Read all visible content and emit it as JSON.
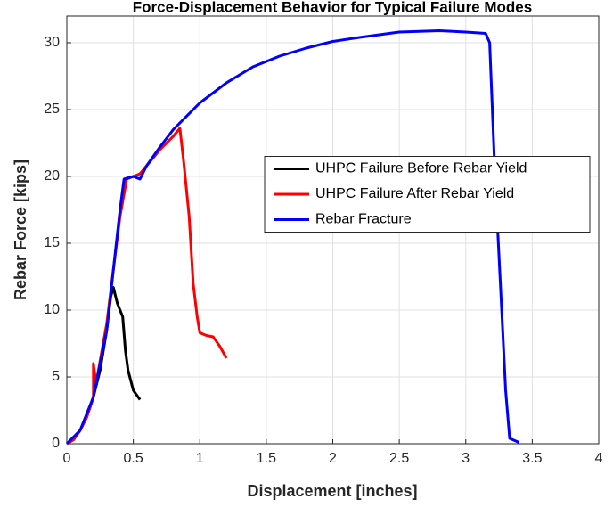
{
  "chart_data": {
    "type": "line",
    "title": "Force-Displacement Behavior for Typical Failure Modes",
    "xlabel": "Displacement [inches]",
    "ylabel": "Rebar Force [kips]",
    "xlim": [
      0,
      4
    ],
    "xticks": [
      0,
      0.5,
      1,
      1.5,
      2,
      2.5,
      3,
      3.5,
      4
    ],
    "ylim": [
      0,
      32
    ],
    "yticks": [
      0,
      5,
      10,
      15,
      20,
      25,
      30
    ],
    "grid": true,
    "legend": "east",
    "series": [
      {
        "name": "UHPC Failure Before Rebar Yield",
        "color": "#000000",
        "x": [
          0,
          0.05,
          0.1,
          0.15,
          0.2,
          0.25,
          0.3,
          0.33,
          0.35,
          0.38,
          0.42,
          0.44,
          0.46,
          0.5,
          0.55
        ],
        "values": [
          0,
          0.3,
          1,
          2,
          3.5,
          5.5,
          8.5,
          11,
          11.7,
          10.5,
          9.5,
          7,
          5.5,
          4,
          3.3
        ]
      },
      {
        "name": "UHPC Failure After Rebar Yield",
        "color": "#ff0000",
        "x": [
          0,
          0.05,
          0.1,
          0.15,
          0.2,
          0.2,
          0.22,
          0.3,
          0.35,
          0.4,
          0.45,
          0.5,
          0.55,
          0.6,
          0.7,
          0.8,
          0.85,
          0.88,
          0.92,
          0.95,
          0.98,
          1.0,
          1.05,
          1.1,
          1.15,
          1.2
        ],
        "values": [
          0,
          0.3,
          1,
          2,
          3.5,
          6,
          4.5,
          9,
          13,
          17,
          19.8,
          20,
          20.2,
          20.8,
          22,
          23,
          23.6,
          21,
          17,
          12,
          9.5,
          8.3,
          8.1,
          8,
          7.3,
          6.4
        ]
      },
      {
        "name": "Rebar Fracture",
        "color": "#0000ff",
        "x": [
          0,
          0.1,
          0.2,
          0.3,
          0.35,
          0.4,
          0.43,
          0.5,
          0.55,
          0.6,
          0.7,
          0.8,
          1.0,
          1.2,
          1.4,
          1.6,
          1.8,
          2.0,
          2.2,
          2.5,
          2.8,
          3.0,
          3.15,
          3.18,
          3.22,
          3.26,
          3.3,
          3.33,
          3.4
        ],
        "values": [
          0,
          1,
          3.5,
          8.5,
          13,
          17.5,
          19.8,
          20,
          19.8,
          20.8,
          22.2,
          23.5,
          25.5,
          27,
          28.2,
          29,
          29.6,
          30.1,
          30.4,
          30.8,
          30.9,
          30.8,
          30.7,
          30,
          20,
          12,
          4,
          0.4,
          0.1
        ]
      }
    ]
  }
}
